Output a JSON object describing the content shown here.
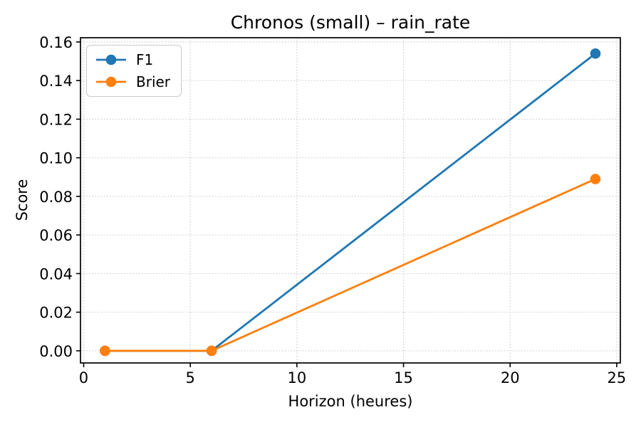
{
  "chart_data": {
    "type": "line",
    "title": "Chronos (small) – rain_rate",
    "xlabel": "Horizon (heures)",
    "ylabel": "Score",
    "x": [
      1,
      6,
      24
    ],
    "series": [
      {
        "name": "F1",
        "color": "#1f77b4",
        "values": [
          0.0,
          0.0,
          0.154
        ]
      },
      {
        "name": "Brier",
        "color": "#ff7f0e",
        "values": [
          0.0,
          0.0,
          0.089
        ]
      }
    ],
    "xticks": [
      0,
      5,
      10,
      15,
      20,
      25
    ],
    "xtick_labels": [
      "0",
      "5",
      "10",
      "15",
      "20",
      "25"
    ],
    "yticks": [
      0.0,
      0.02,
      0.04,
      0.06,
      0.08,
      0.1,
      0.12,
      0.14,
      0.16
    ],
    "ytick_labels": [
      "0.00",
      "0.02",
      "0.04",
      "0.06",
      "0.08",
      "0.10",
      "0.12",
      "0.14",
      "0.16"
    ],
    "xlim": [
      -0.15,
      25.17
    ],
    "ylim": [
      -0.0063,
      0.1622
    ],
    "grid": true,
    "grid_style": "dotted",
    "legend_position": "upper-left",
    "marker": "circle"
  },
  "style": {
    "grid_color": "#cccccc",
    "spine_color": "#000000",
    "tick_color": "#000000",
    "background": "#ffffff"
  }
}
